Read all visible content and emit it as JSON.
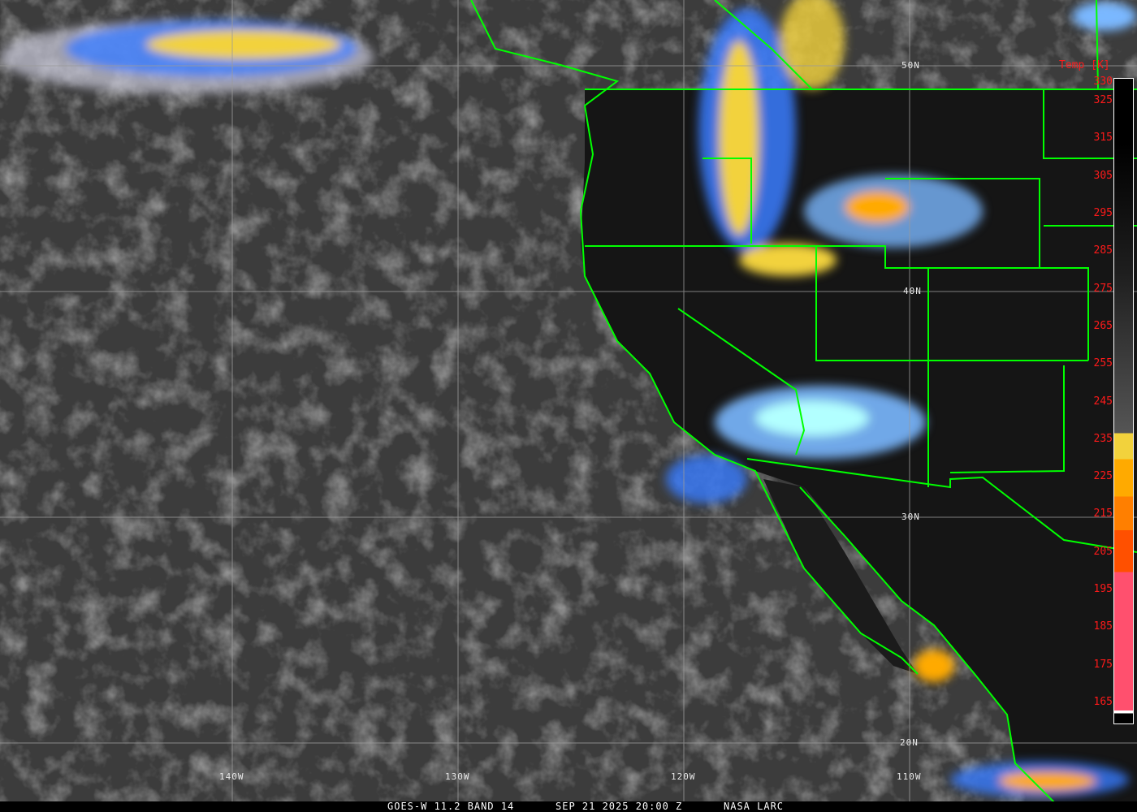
{
  "caption": {
    "satellite": "GOES-W 11.2 BAND 14",
    "datetime": "SEP 21 2025 20:00 Z",
    "source": "NASA LARC"
  },
  "latitude_labels": [
    "50N",
    "40N",
    "30N",
    "20N"
  ],
  "longitude_labels": [
    "140W",
    "130W",
    "120W",
    "110W"
  ],
  "legend": {
    "title": "Temp [K]",
    "ticks": [
      "330",
      "325",
      "315",
      "305",
      "295",
      "285",
      "275",
      "265",
      "255",
      "245",
      "235",
      "225",
      "215",
      "205",
      "195",
      "185",
      "175",
      "165"
    ],
    "colors": {
      "warm": "#000000",
      "cold_gray": "#9a9a9a",
      "blue": "#3a7cff",
      "light_blue": "#7ab8ff",
      "cyan": "#b2ffff",
      "pale_yellow": "#ffffc8",
      "yellow": "#f2d23c",
      "orange": "#ffaa00",
      "dark_orange": "#ff7f00",
      "red_orange": "#ff5000",
      "pink": "#ff506e"
    }
  },
  "colors": {
    "borders": "#00ff00",
    "grid": "#9a9a9a",
    "labels": "#ff1a1a"
  }
}
